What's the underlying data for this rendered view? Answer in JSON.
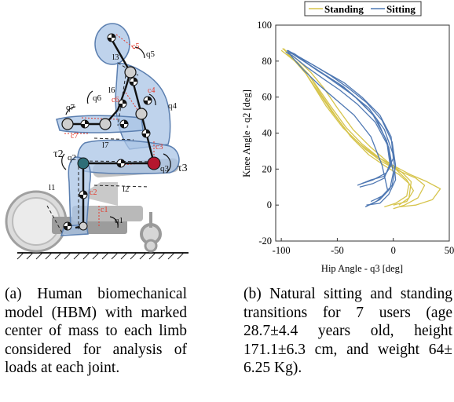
{
  "figure_a": {
    "labels": {
      "l3": "l3",
      "q5": "q5",
      "c5": "c5",
      "l6": "l6",
      "q6": "q6",
      "c6": "c6",
      "q4": "q4",
      "c4": "c4",
      "q7": "q7",
      "c7": "c7",
      "l7": "l7",
      "tau2": "τ2",
      "q2": "q2",
      "c3": "c3",
      "q3": "q3",
      "tau3": "τ3",
      "l1": "l1",
      "l2": "l2",
      "c2": "c2",
      "c1": "c1",
      "q1": "q1"
    },
    "colors": {
      "body_fill": "#a9c4e6",
      "body_stroke": "#5b7fb0",
      "knee_joint": "#b5162e",
      "hip_joint": "#2e6e78",
      "cm_line": "#e23b2e",
      "chair": "#c8c8c8"
    }
  },
  "chart_data": {
    "type": "line",
    "legend": [
      "Standing",
      "Sitting"
    ],
    "legend_position": "top",
    "colors": {
      "Standing": "#d6c44b",
      "Sitting": "#4f78b3"
    },
    "xlabel": "Hip Angle - q3 [deg]",
    "ylabel": "Knee Angle - q2 [deg]",
    "xlim": [
      -105,
      50
    ],
    "ylim": [
      -20,
      100
    ],
    "xticks": [
      -100,
      -50,
      0,
      50
    ],
    "yticks": [
      -20,
      0,
      20,
      40,
      60,
      80,
      100
    ],
    "grid": false,
    "series": [
      {
        "name": "Standing",
        "group": "Standing",
        "points": [
          [
            -98,
            87
          ],
          [
            -90,
            82
          ],
          [
            -80,
            75
          ],
          [
            -70,
            65
          ],
          [
            -60,
            55
          ],
          [
            -45,
            43
          ],
          [
            -30,
            34
          ],
          [
            -15,
            27
          ],
          [
            0,
            22
          ],
          [
            15,
            17
          ],
          [
            30,
            13
          ],
          [
            42,
            9
          ],
          [
            35,
            3
          ],
          [
            20,
            0
          ],
          [
            5,
            -1
          ]
        ]
      },
      {
        "name": "Standing",
        "group": "Standing",
        "points": [
          [
            -100,
            86
          ],
          [
            -88,
            80
          ],
          [
            -78,
            73
          ],
          [
            -66,
            62
          ],
          [
            -55,
            52
          ],
          [
            -40,
            40
          ],
          [
            -25,
            31
          ],
          [
            -10,
            24
          ],
          [
            5,
            19
          ],
          [
            20,
            15
          ],
          [
            28,
            11
          ],
          [
            22,
            4
          ],
          [
            10,
            0
          ],
          [
            0,
            -2
          ]
        ]
      },
      {
        "name": "Standing",
        "group": "Standing",
        "points": [
          [
            -95,
            84
          ],
          [
            -85,
            79
          ],
          [
            -75,
            72
          ],
          [
            -65,
            62
          ],
          [
            -52,
            50
          ],
          [
            -38,
            38
          ],
          [
            -22,
            28
          ],
          [
            -8,
            22
          ],
          [
            5,
            17
          ],
          [
            14,
            12
          ],
          [
            12,
            5
          ],
          [
            2,
            1
          ],
          [
            -8,
            -1
          ]
        ]
      },
      {
        "name": "Standing",
        "group": "Standing",
        "points": [
          [
            -97,
            86
          ],
          [
            -87,
            80
          ],
          [
            -76,
            73
          ],
          [
            -66,
            64
          ],
          [
            -56,
            55
          ],
          [
            -42,
            43
          ],
          [
            -28,
            34
          ],
          [
            -12,
            26
          ],
          [
            2,
            20
          ],
          [
            12,
            14
          ],
          [
            18,
            8
          ],
          [
            12,
            2
          ],
          [
            0,
            0
          ]
        ]
      },
      {
        "name": "Standing",
        "group": "Standing",
        "points": [
          [
            -99,
            87
          ],
          [
            -86,
            81
          ],
          [
            -74,
            74
          ],
          [
            -62,
            65
          ],
          [
            -50,
            54
          ],
          [
            -36,
            42
          ],
          [
            -20,
            32
          ],
          [
            -5,
            24
          ],
          [
            8,
            18
          ],
          [
            16,
            13
          ],
          [
            14,
            4
          ],
          [
            5,
            0
          ]
        ]
      },
      {
        "name": "Sitting",
        "group": "Sitting",
        "points": [
          [
            -25,
            -1
          ],
          [
            -15,
            2
          ],
          [
            -5,
            8
          ],
          [
            -10,
            22
          ],
          [
            -20,
            38
          ],
          [
            -35,
            50
          ],
          [
            -50,
            58
          ],
          [
            -65,
            66
          ],
          [
            -80,
            75
          ],
          [
            -90,
            82
          ],
          [
            -95,
            86
          ]
        ]
      },
      {
        "name": "Sitting",
        "group": "Sitting",
        "points": [
          [
            -32,
            11
          ],
          [
            -20,
            14
          ],
          [
            -8,
            16
          ],
          [
            -2,
            22
          ],
          [
            -5,
            34
          ],
          [
            -15,
            48
          ],
          [
            -30,
            58
          ],
          [
            -45,
            66
          ],
          [
            -60,
            72
          ],
          [
            -75,
            78
          ],
          [
            -88,
            84
          ],
          [
            -95,
            86
          ]
        ]
      },
      {
        "name": "Sitting",
        "group": "Sitting",
        "points": [
          [
            -22,
            0
          ],
          [
            -12,
            3
          ],
          [
            -3,
            9
          ],
          [
            0,
            18
          ],
          [
            -4,
            32
          ],
          [
            -16,
            46
          ],
          [
            -32,
            56
          ],
          [
            -48,
            64
          ],
          [
            -62,
            70
          ],
          [
            -78,
            77
          ],
          [
            -90,
            83
          ],
          [
            -96,
            85
          ]
        ]
      },
      {
        "name": "Sitting",
        "group": "Sitting",
        "points": [
          [
            -28,
            12
          ],
          [
            -18,
            14
          ],
          [
            -6,
            18
          ],
          [
            0,
            26
          ],
          [
            -2,
            38
          ],
          [
            -12,
            50
          ],
          [
            -28,
            60
          ],
          [
            -44,
            68
          ],
          [
            -58,
            73
          ],
          [
            -72,
            78
          ],
          [
            -86,
            83
          ],
          [
            -94,
            85
          ]
        ]
      },
      {
        "name": "Sitting",
        "group": "Sitting",
        "points": [
          [
            -20,
            2
          ],
          [
            -10,
            5
          ],
          [
            -1,
            11
          ],
          [
            2,
            22
          ],
          [
            -1,
            35
          ],
          [
            -10,
            47
          ],
          [
            -24,
            57
          ],
          [
            -40,
            65
          ],
          [
            -56,
            72
          ],
          [
            -72,
            78
          ],
          [
            -86,
            83
          ],
          [
            -92,
            85
          ]
        ]
      },
      {
        "name": "Sitting",
        "group": "Sitting",
        "points": [
          [
            -30,
            10
          ],
          [
            -18,
            12
          ],
          [
            -8,
            15
          ],
          [
            -3,
            23
          ],
          [
            -6,
            36
          ],
          [
            -18,
            50
          ],
          [
            -34,
            60
          ],
          [
            -50,
            68
          ],
          [
            -66,
            74
          ],
          [
            -80,
            80
          ],
          [
            -90,
            84
          ]
        ]
      },
      {
        "name": "Sitting",
        "group": "Sitting",
        "points": [
          [
            -24,
            0
          ],
          [
            -12,
            1
          ],
          [
            -4,
            6
          ],
          [
            2,
            14
          ],
          [
            0,
            28
          ],
          [
            -8,
            42
          ],
          [
            -22,
            54
          ],
          [
            -38,
            62
          ],
          [
            -54,
            69
          ],
          [
            -70,
            76
          ],
          [
            -85,
            82
          ],
          [
            -94,
            86
          ]
        ]
      }
    ]
  },
  "captions": {
    "a": "(a) Human biomechanical model (HBM) with marked center of mass to each limb considered for analysis of loads at each joint.",
    "b": "(b) Natural sitting and standing transitions for 7 users (age 28.7±4.4 years old, height 171.1±6.3 cm, and weight 64± 6.25 Kg)."
  }
}
